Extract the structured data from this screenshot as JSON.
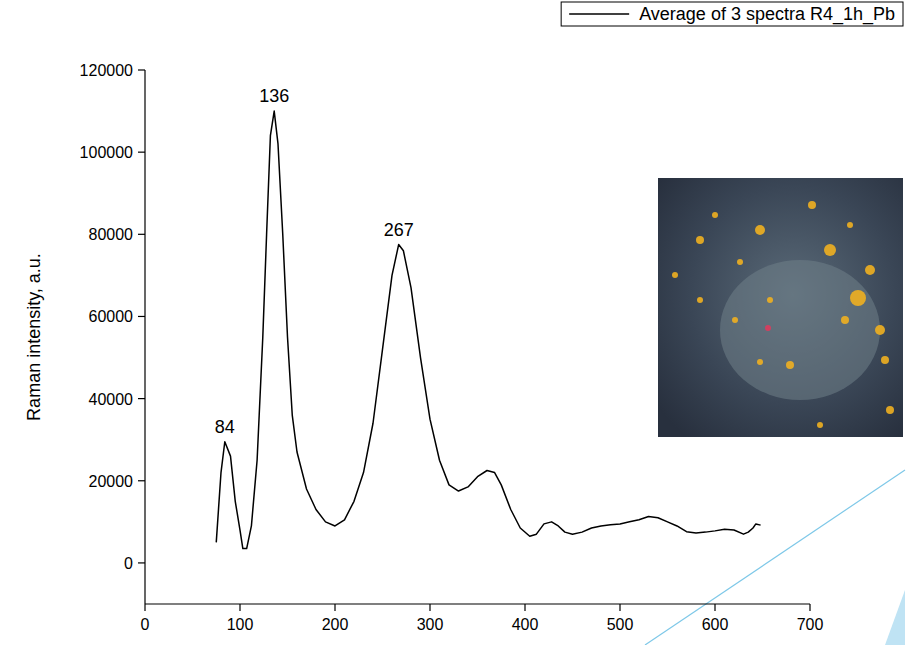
{
  "chart_data": {
    "type": "line",
    "y_label": "Raman intensity, a.u.",
    "x": [
      75,
      80,
      84,
      90,
      95,
      100,
      103,
      107,
      112,
      118,
      124,
      128,
      132,
      136,
      140,
      145,
      150,
      155,
      160,
      170,
      180,
      190,
      200,
      210,
      220,
      230,
      240,
      250,
      260,
      267,
      272,
      280,
      290,
      300,
      310,
      320,
      330,
      340,
      350,
      360,
      368,
      375,
      385,
      395,
      405,
      412,
      420,
      428,
      435,
      442,
      450,
      460,
      470,
      480,
      490,
      500,
      510,
      520,
      530,
      540,
      550,
      560,
      570,
      580,
      590,
      600,
      610,
      620,
      630,
      635,
      640,
      643,
      648
    ],
    "series": [
      {
        "name": "Average of 3 spectra R4_1h_Pb",
        "color": "#000000",
        "values": [
          5000,
          22000,
          29500,
          26000,
          15000,
          8000,
          3500,
          3500,
          9000,
          25000,
          55000,
          80000,
          104000,
          110000,
          102000,
          80000,
          55000,
          36000,
          27000,
          18000,
          13000,
          10000,
          9000,
          10500,
          15000,
          22000,
          34000,
          52000,
          70000,
          77500,
          76000,
          67000,
          50000,
          35000,
          25000,
          19000,
          17500,
          18500,
          21000,
          22500,
          22000,
          19000,
          13000,
          8500,
          6500,
          7000,
          9500,
          10000,
          9000,
          7500,
          7000,
          7500,
          8500,
          9000,
          9300,
          9500,
          10000,
          10500,
          11300,
          11000,
          10000,
          9000,
          7600,
          7300,
          7500,
          7800,
          8200,
          8000,
          7000,
          7500,
          8500,
          9500,
          9200
        ]
      }
    ],
    "annotations": [
      {
        "text": "84",
        "x": 84,
        "y": 29500
      },
      {
        "text": "136",
        "x": 136,
        "y": 110000
      },
      {
        "text": "267",
        "x": 267,
        "y": 77500
      }
    ],
    "xlim": [
      0,
      700
    ],
    "xticks": [
      0,
      100,
      200,
      300,
      400,
      500,
      600,
      700
    ],
    "ylim": [
      -10000,
      120000
    ],
    "yticks": [
      0,
      20000,
      40000,
      60000,
      80000,
      100000,
      120000
    ],
    "grid": false,
    "legend": "top-right"
  }
}
